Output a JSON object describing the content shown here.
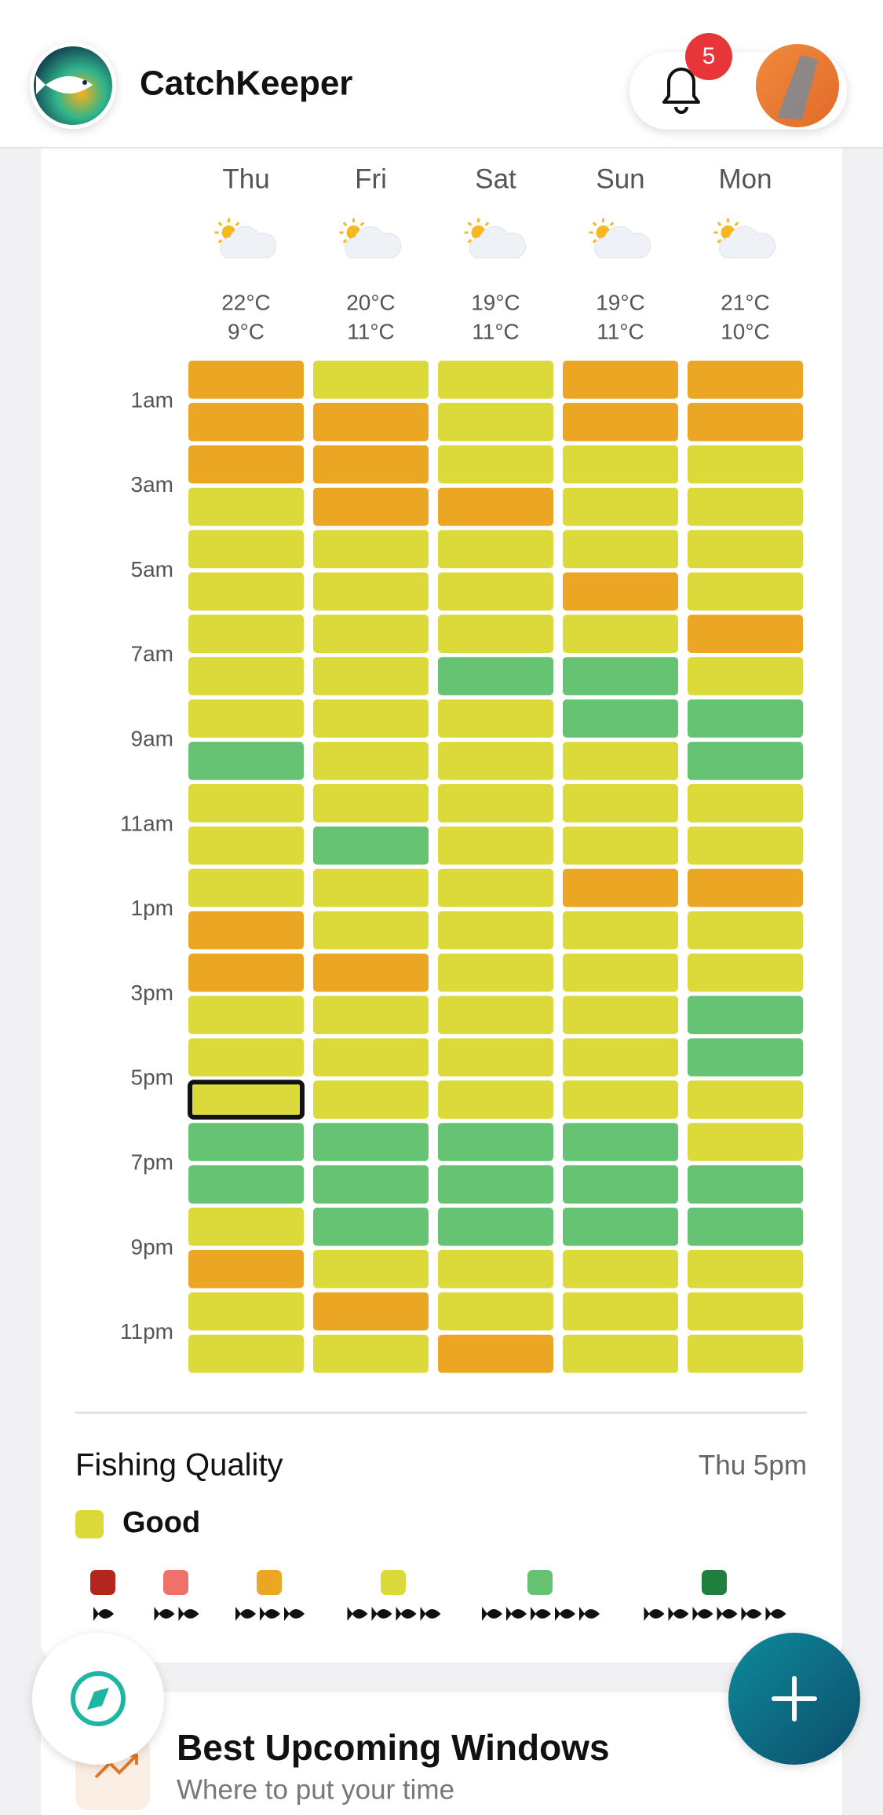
{
  "app": {
    "name": "CatchKeeper",
    "notifications": 5
  },
  "forecast": {
    "days": [
      {
        "name": "Thu",
        "high": "22°C",
        "low": "9°C",
        "hours": [
          3,
          3,
          3,
          4,
          4,
          4,
          4,
          4,
          4,
          5,
          4,
          4,
          4,
          3,
          3,
          4,
          4,
          4,
          5,
          5,
          4,
          3,
          4,
          4
        ]
      },
      {
        "name": "Fri",
        "high": "20°C",
        "low": "11°C",
        "hours": [
          4,
          3,
          3,
          3,
          4,
          4,
          4,
          4,
          4,
          4,
          4,
          5,
          4,
          4,
          3,
          4,
          4,
          4,
          5,
          5,
          5,
          4,
          3,
          4
        ]
      },
      {
        "name": "Sat",
        "high": "19°C",
        "low": "11°C",
        "hours": [
          4,
          4,
          4,
          3,
          4,
          4,
          4,
          5,
          4,
          4,
          4,
          4,
          4,
          4,
          4,
          4,
          4,
          4,
          5,
          5,
          5,
          4,
          4,
          3
        ]
      },
      {
        "name": "Sun",
        "high": "19°C",
        "low": "11°C",
        "hours": [
          3,
          3,
          4,
          4,
          4,
          3,
          4,
          5,
          5,
          4,
          4,
          4,
          3,
          4,
          4,
          4,
          4,
          4,
          5,
          5,
          5,
          4,
          4,
          4
        ]
      },
      {
        "name": "Mon",
        "high": "21°C",
        "low": "10°C",
        "hours": [
          3,
          3,
          4,
          4,
          4,
          4,
          3,
          4,
          5,
          5,
          4,
          4,
          3,
          4,
          4,
          5,
          5,
          4,
          4,
          5,
          5,
          4,
          4,
          4
        ]
      }
    ],
    "hour_labels": [
      "1am",
      "3am",
      "5am",
      "7am",
      "9am",
      "11am",
      "1pm",
      "3pm",
      "5pm",
      "7pm",
      "9pm",
      "11pm"
    ],
    "selected": {
      "day": 0,
      "hour": 17
    }
  },
  "quality": {
    "title": "Fishing Quality",
    "selected_time": "Thu 5pm",
    "selected_level": "Good",
    "levels": [
      {
        "fish": 1,
        "color": "#b3261e"
      },
      {
        "fish": 2,
        "color": "#f07167"
      },
      {
        "fish": 3,
        "color": "#eba624"
      },
      {
        "fish": 4,
        "color": "#dcd93a"
      },
      {
        "fish": 5,
        "color": "#66c373"
      },
      {
        "fish": 6,
        "color": "#1f7f3f"
      }
    ]
  },
  "section": {
    "title": "Best Upcoming Windows",
    "subtitle": "Where to put your time"
  }
}
